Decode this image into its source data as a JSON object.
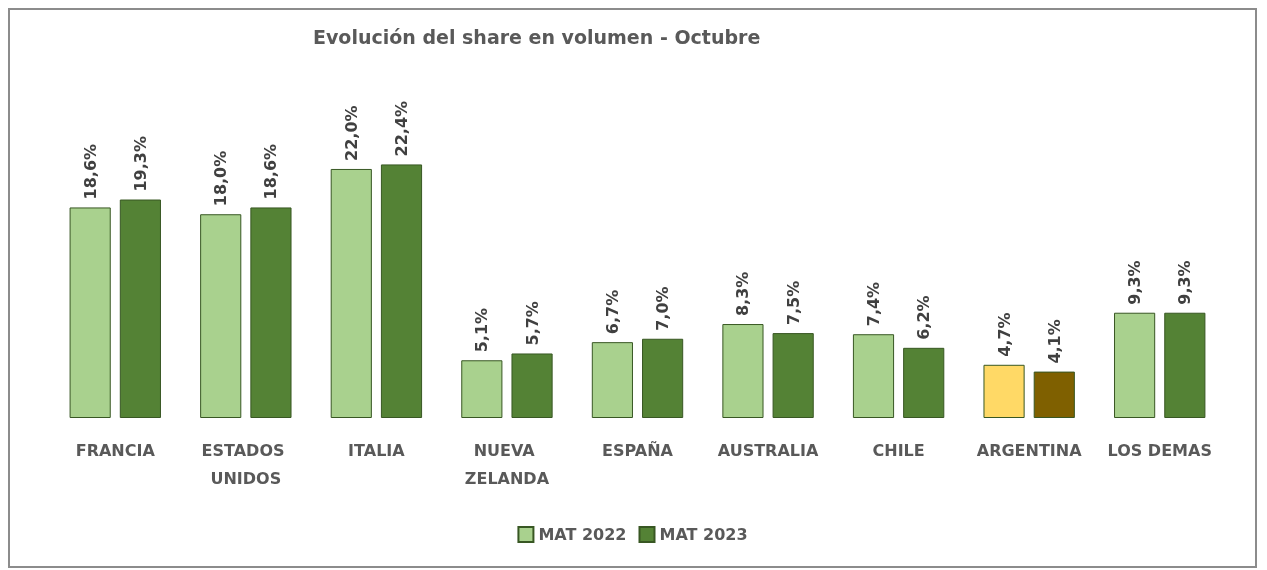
{
  "chart_data": {
    "type": "bar",
    "title": "Evolución del share en volumen - Octubre",
    "categories": [
      "FRANCIA",
      "ESTADOS UNIDOS",
      "ITALIA",
      "NUEVA ZELANDA",
      "ESPAÑA",
      "AUSTRALIA",
      "CHILE",
      "ARGENTINA",
      "LOS DEMAS"
    ],
    "series": [
      {
        "name": "MAT 2022",
        "color": "#a9d18e",
        "colors": [
          "#a9d18e",
          "#a9d18e",
          "#a9d18e",
          "#a9d18e",
          "#a9d18e",
          "#a9d18e",
          "#a9d18e",
          "#ffd966",
          "#a9d18e"
        ],
        "values": [
          18.6,
          18.0,
          22.0,
          5.1,
          6.7,
          8.3,
          7.4,
          4.7,
          9.3
        ],
        "value_labels": [
          "18,6%",
          "18,0%",
          "22,0%",
          "5,1%",
          "6,7%",
          "8,3%",
          "7,4%",
          "4,7%",
          "9,3%"
        ]
      },
      {
        "name": "MAT 2023",
        "color": "#548235",
        "colors": [
          "#548235",
          "#548235",
          "#548235",
          "#548235",
          "#548235",
          "#548235",
          "#548235",
          "#7f6000",
          "#548235"
        ],
        "values": [
          19.3,
          18.6,
          22.4,
          5.7,
          7.0,
          7.5,
          6.2,
          4.1,
          9.3
        ],
        "value_labels": [
          "19,3%",
          "18,6%",
          "22,4%",
          "5,7%",
          "7,0%",
          "7,5%",
          "6,2%",
          "4,1%",
          "9,3%"
        ]
      }
    ],
    "legend": "bottom"
  }
}
